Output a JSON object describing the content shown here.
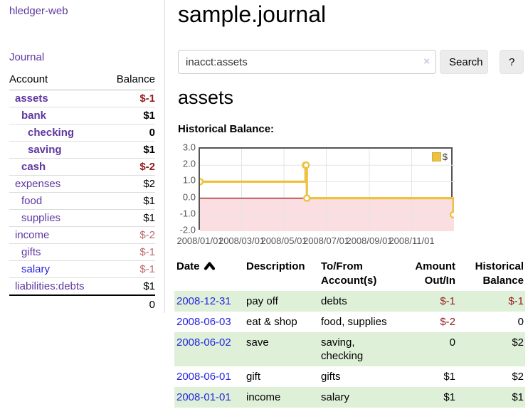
{
  "app": {
    "brand": "hledger-web",
    "nav_journal": "Journal"
  },
  "sidebar": {
    "header": {
      "account": "Account",
      "balance": "Balance"
    },
    "accounts": [
      {
        "name": "assets",
        "indent": 0,
        "bold": true,
        "balance": "$-1",
        "balance_class": "neg-strong"
      },
      {
        "name": "bank",
        "indent": 1,
        "bold": true,
        "balance": "$1",
        "balance_class": ""
      },
      {
        "name": "checking",
        "indent": 2,
        "bold": true,
        "balance": "0",
        "balance_class": ""
      },
      {
        "name": "saving",
        "indent": 2,
        "bold": true,
        "balance": "$1",
        "balance_class": ""
      },
      {
        "name": "cash",
        "indent": 1,
        "bold": true,
        "balance": "$-2",
        "balance_class": "neg-strong"
      },
      {
        "name": "expenses",
        "indent": 0,
        "bold": false,
        "balance": "$2",
        "balance_class": ""
      },
      {
        "name": "food",
        "indent": 1,
        "bold": false,
        "balance": "$1",
        "balance_class": ""
      },
      {
        "name": "supplies",
        "indent": 1,
        "bold": false,
        "balance": "$1",
        "balance_class": ""
      },
      {
        "name": "income",
        "indent": 0,
        "bold": false,
        "balance": "$-2",
        "balance_class": "neg-soft"
      },
      {
        "name": "gifts",
        "indent": 1,
        "bold": false,
        "balance": "$-1",
        "balance_class": "neg-soft"
      },
      {
        "name": "salary",
        "indent": 1,
        "bold": false,
        "balance": "$-1",
        "balance_class": "neg-soft",
        "link_color": "blue"
      },
      {
        "name": "liabilities:debts",
        "indent": 0,
        "bold": false,
        "balance": "$1",
        "balance_class": ""
      }
    ],
    "total": "0"
  },
  "header": {
    "title": "sample.journal"
  },
  "search": {
    "query": "inacct:assets",
    "clear_icon": "×",
    "search_label": "Search",
    "help_label": "?"
  },
  "account_page": {
    "heading": "assets",
    "chart_label": "Historical Balance:"
  },
  "chart_data": {
    "type": "line",
    "title": "Historical Balance:",
    "series": [
      {
        "name": "$",
        "color": "#edc240",
        "steps": true,
        "points": [
          [
            "2008-01-01",
            1
          ],
          [
            "2008-06-01",
            2
          ],
          [
            "2008-06-02",
            2
          ],
          [
            "2008-06-03",
            0
          ],
          [
            "2008-12-31",
            -1
          ]
        ]
      }
    ],
    "xlim": [
      "2008-01-01",
      "2009-01-01"
    ],
    "ylim": [
      -2,
      3
    ],
    "y_ticks": [
      {
        "value": 3,
        "label": "3.0"
      },
      {
        "value": 2,
        "label": "2.0"
      },
      {
        "value": 1,
        "label": "1.0"
      },
      {
        "value": 0,
        "label": "0.0"
      },
      {
        "value": -1,
        "label": "-1.0"
      },
      {
        "value": -2,
        "label": "-2.0"
      }
    ],
    "x_ticks": [
      {
        "date": "2008-01-01",
        "label": "2008/01/01"
      },
      {
        "date": "2008-03-01",
        "label": "2008/03/01"
      },
      {
        "date": "2008-05-01",
        "label": "2008/05/01"
      },
      {
        "date": "2008-07-01",
        "label": "2008/07/01"
      },
      {
        "date": "2008-09-01",
        "label": "2008/09/01"
      },
      {
        "date": "2008-11-01",
        "label": "2008/11/01"
      },
      {
        "date": "2009-01-01",
        "label": ""
      }
    ],
    "grid": true,
    "legend_position": "top-right",
    "negative_region_color": "#fbdee1",
    "zero_line_color": "#a21c1c",
    "grid_color": "#e4e4e4",
    "border_color": "#545454"
  },
  "register": {
    "columns": {
      "date": "Date",
      "description": "Description",
      "accounts": "To/From Account(s)",
      "amount": "Amount Out/In",
      "balance": "Historical Balance"
    },
    "rows": [
      {
        "date": "2008-12-31",
        "description": "pay off",
        "accounts": "debts",
        "amount": "$-1",
        "amount_class": "neg-strong",
        "balance": "$-1",
        "balance_class": "neg-strong",
        "shaded": true
      },
      {
        "date": "2008-06-03",
        "description": "eat & shop",
        "accounts": "food, supplies",
        "amount": "$-2",
        "amount_class": "neg-strong",
        "balance": "0",
        "balance_class": "",
        "shaded": false
      },
      {
        "date": "2008-06-02",
        "description": "save",
        "accounts": "saving, checking",
        "amount": "0",
        "amount_class": "",
        "balance": "$2",
        "balance_class": "",
        "shaded": true
      },
      {
        "date": "2008-06-01",
        "description": "gift",
        "accounts": "gifts",
        "amount": "$1",
        "amount_class": "",
        "balance": "$2",
        "balance_class": "",
        "shaded": false
      },
      {
        "date": "2008-01-01",
        "description": "income",
        "accounts": "salary",
        "amount": "$1",
        "amount_class": "",
        "balance": "$1",
        "balance_class": "",
        "shaded": true
      }
    ]
  },
  "colors": {
    "accent_purple": "#5f37a0",
    "link_blue": "#2626e0",
    "negative_strong": "#941c1c",
    "negative_soft": "#c0696e",
    "row_shade_green": "#dff0d8",
    "series_gold": "#edc240"
  }
}
